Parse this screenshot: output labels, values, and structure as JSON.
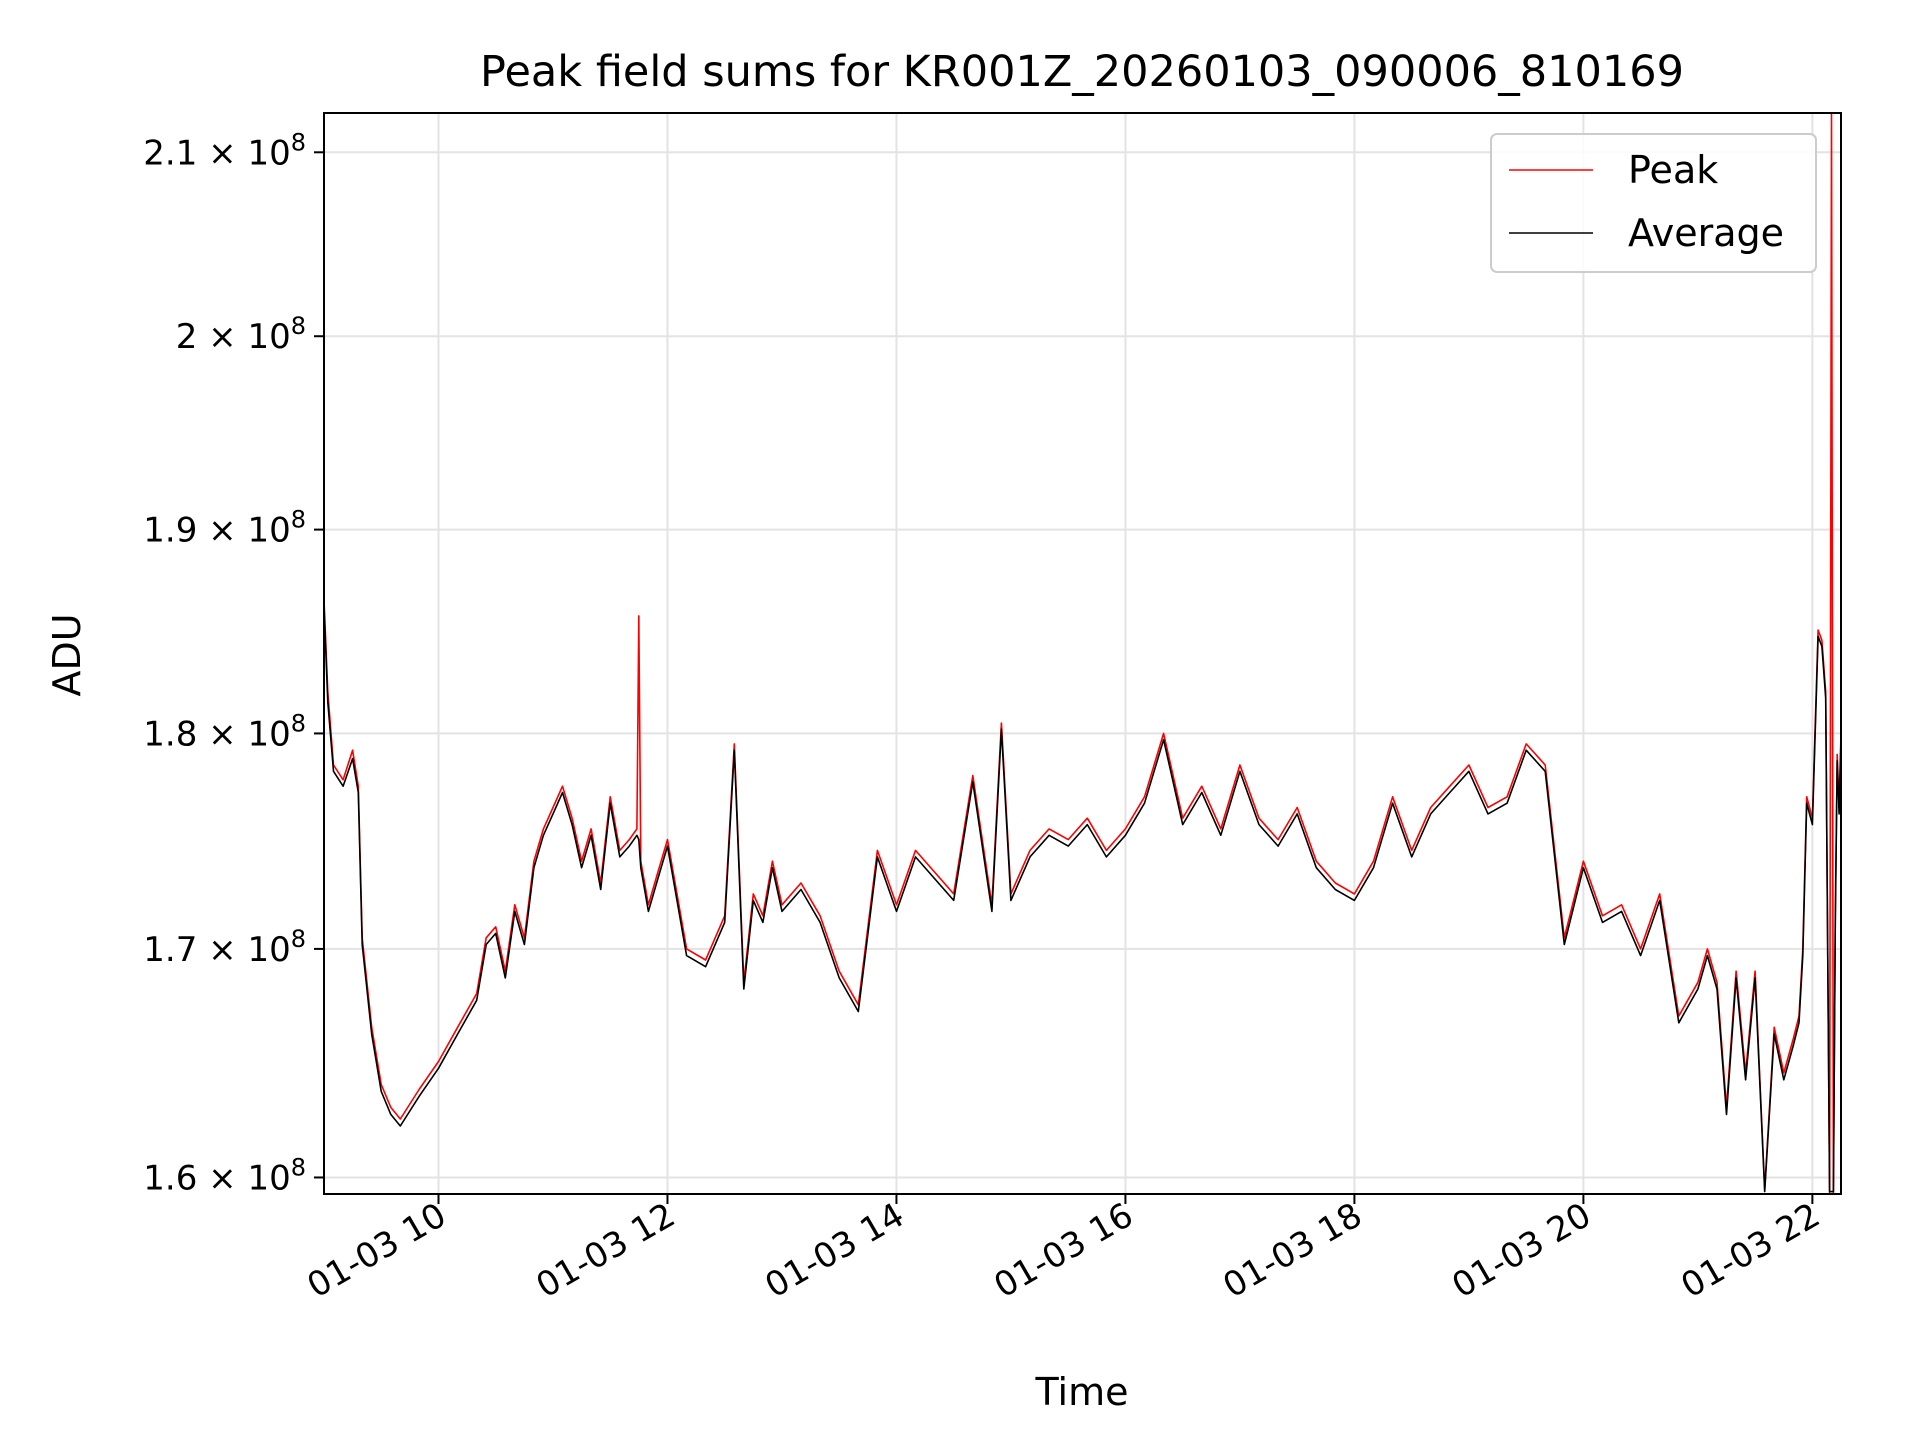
{
  "chart_data": {
    "type": "line",
    "title": "Peak field sums for KR001Z_20260103_090006_810169",
    "xlabel": "Time",
    "ylabel": "ADU",
    "y_scale": "log",
    "grid": true,
    "legend_position": "top-right",
    "xlim": [
      "2026-01-03 09:00",
      "2026-01-03 22:15"
    ],
    "ylim": [
      159300000,
      212200000
    ],
    "x_ticks": [
      {
        "value": "2026-01-03 10:00",
        "label": "01-03 10"
      },
      {
        "value": "2026-01-03 12:00",
        "label": "01-03 12"
      },
      {
        "value": "2026-01-03 14:00",
        "label": "01-03 14"
      },
      {
        "value": "2026-01-03 16:00",
        "label": "01-03 16"
      },
      {
        "value": "2026-01-03 18:00",
        "label": "01-03 18"
      },
      {
        "value": "2026-01-03 20:00",
        "label": "01-03 20"
      },
      {
        "value": "2026-01-03 22:00",
        "label": "01-03 22"
      }
    ],
    "y_ticks": [
      {
        "value": 160000000,
        "mantissa": "1.6"
      },
      {
        "value": 170000000,
        "mantissa": "1.7"
      },
      {
        "value": 180000000,
        "mantissa": "1.8"
      },
      {
        "value": 190000000,
        "mantissa": "1.9"
      },
      {
        "value": 200000000,
        "mantissa": "2"
      },
      {
        "value": 210000000,
        "mantissa": "2.1"
      }
    ],
    "y_tick_base": "× 10",
    "y_tick_exponent": "8",
    "series": [
      {
        "name": "Peak",
        "color": "#ff0000",
        "x": [
          "2026-01-03 09:00",
          "2026-01-03 09:02",
          "2026-01-03 09:05",
          "2026-01-03 09:10",
          "2026-01-03 09:15",
          "2026-01-03 09:18",
          "2026-01-03 09:20",
          "2026-01-03 09:25",
          "2026-01-03 09:30",
          "2026-01-03 09:35",
          "2026-01-03 09:40",
          "2026-01-03 09:50",
          "2026-01-03 10:00",
          "2026-01-03 10:10",
          "2026-01-03 10:20",
          "2026-01-03 10:25",
          "2026-01-03 10:30",
          "2026-01-03 10:35",
          "2026-01-03 10:40",
          "2026-01-03 10:45",
          "2026-01-03 10:50",
          "2026-01-03 10:55",
          "2026-01-03 11:00",
          "2026-01-03 11:05",
          "2026-01-03 11:10",
          "2026-01-03 11:15",
          "2026-01-03 11:20",
          "2026-01-03 11:25",
          "2026-01-03 11:30",
          "2026-01-03 11:35",
          "2026-01-03 11:40",
          "2026-01-03 11:44",
          "2026-01-03 11:45",
          "2026-01-03 11:46",
          "2026-01-03 11:50",
          "2026-01-03 11:55",
          "2026-01-03 12:00",
          "2026-01-03 12:10",
          "2026-01-03 12:20",
          "2026-01-03 12:30",
          "2026-01-03 12:35",
          "2026-01-03 12:40",
          "2026-01-03 12:45",
          "2026-01-03 12:50",
          "2026-01-03 12:55",
          "2026-01-03 13:00",
          "2026-01-03 13:10",
          "2026-01-03 13:20",
          "2026-01-03 13:30",
          "2026-01-03 13:40",
          "2026-01-03 13:50",
          "2026-01-03 14:00",
          "2026-01-03 14:10",
          "2026-01-03 14:20",
          "2026-01-03 14:30",
          "2026-01-03 14:40",
          "2026-01-03 14:50",
          "2026-01-03 14:55",
          "2026-01-03 15:00",
          "2026-01-03 15:10",
          "2026-01-03 15:20",
          "2026-01-03 15:30",
          "2026-01-03 15:40",
          "2026-01-03 15:50",
          "2026-01-03 16:00",
          "2026-01-03 16:10",
          "2026-01-03 16:20",
          "2026-01-03 16:30",
          "2026-01-03 16:40",
          "2026-01-03 16:50",
          "2026-01-03 17:00",
          "2026-01-03 17:10",
          "2026-01-03 17:20",
          "2026-01-03 17:30",
          "2026-01-03 17:40",
          "2026-01-03 17:50",
          "2026-01-03 18:00",
          "2026-01-03 18:10",
          "2026-01-03 18:20",
          "2026-01-03 18:30",
          "2026-01-03 18:40",
          "2026-01-03 18:50",
          "2026-01-03 19:00",
          "2026-01-03 19:10",
          "2026-01-03 19:20",
          "2026-01-03 19:30",
          "2026-01-03 19:40",
          "2026-01-03 19:50",
          "2026-01-03 20:00",
          "2026-01-03 20:10",
          "2026-01-03 20:20",
          "2026-01-03 20:30",
          "2026-01-03 20:40",
          "2026-01-03 20:50",
          "2026-01-03 21:00",
          "2026-01-03 21:05",
          "2026-01-03 21:10",
          "2026-01-03 21:15",
          "2026-01-03 21:20",
          "2026-01-03 21:25",
          "2026-01-03 21:30",
          "2026-01-03 21:35",
          "2026-01-03 21:40",
          "2026-01-03 21:45",
          "2026-01-03 21:50",
          "2026-01-03 21:53",
          "2026-01-03 21:55",
          "2026-01-03 21:57",
          "2026-01-03 22:00",
          "2026-01-03 22:03",
          "2026-01-03 22:05",
          "2026-01-03 22:07",
          "2026-01-03 22:09",
          "2026-01-03 22:10",
          "2026-01-03 22:11",
          "2026-01-03 22:12",
          "2026-01-03 22:13",
          "2026-01-03 22:14",
          "2026-01-03 22:15"
        ],
        "y": [
          186500000,
          182000000,
          178500000,
          177800000,
          179200000,
          177500000,
          170500000,
          166500000,
          164000000,
          163000000,
          162500000,
          163800000,
          165000000,
          166500000,
          168000000,
          170500000,
          171000000,
          169000000,
          172000000,
          170500000,
          174000000,
          175500000,
          176500000,
          177500000,
          176000000,
          174000000,
          175500000,
          173000000,
          177000000,
          174500000,
          175000000,
          175500000,
          185700000,
          174000000,
          172000000,
          173500000,
          175000000,
          170000000,
          169500000,
          171500000,
          179500000,
          168500000,
          172500000,
          171500000,
          174000000,
          172000000,
          173000000,
          171500000,
          169000000,
          167500000,
          174500000,
          172000000,
          174500000,
          173500000,
          172500000,
          178000000,
          172000000,
          180500000,
          172500000,
          174500000,
          175500000,
          175000000,
          176000000,
          174500000,
          175500000,
          177000000,
          180000000,
          176000000,
          177500000,
          175500000,
          178500000,
          176000000,
          175000000,
          176500000,
          174000000,
          173000000,
          172500000,
          174000000,
          177000000,
          174500000,
          176500000,
          177500000,
          178500000,
          176500000,
          177000000,
          179500000,
          178500000,
          170500000,
          174000000,
          171500000,
          172000000,
          170000000,
          172500000,
          167000000,
          168500000,
          170000000,
          168500000,
          163000000,
          169000000,
          164500000,
          169000000,
          159500000,
          166500000,
          164500000,
          166000000,
          167000000,
          170000000,
          177000000,
          176000000,
          185000000,
          184500000,
          182000000,
          159300000,
          212200000,
          159300000,
          171500000,
          179000000,
          176500000,
          180000000
        ]
      },
      {
        "name": "Average",
        "color": "#000000",
        "x": [
          "2026-01-03 09:00",
          "2026-01-03 09:02",
          "2026-01-03 09:05",
          "2026-01-03 09:10",
          "2026-01-03 09:15",
          "2026-01-03 09:18",
          "2026-01-03 09:20",
          "2026-01-03 09:25",
          "2026-01-03 09:30",
          "2026-01-03 09:35",
          "2026-01-03 09:40",
          "2026-01-03 09:50",
          "2026-01-03 10:00",
          "2026-01-03 10:10",
          "2026-01-03 10:20",
          "2026-01-03 10:25",
          "2026-01-03 10:30",
          "2026-01-03 10:35",
          "2026-01-03 10:40",
          "2026-01-03 10:45",
          "2026-01-03 10:50",
          "2026-01-03 10:55",
          "2026-01-03 11:00",
          "2026-01-03 11:05",
          "2026-01-03 11:10",
          "2026-01-03 11:15",
          "2026-01-03 11:20",
          "2026-01-03 11:25",
          "2026-01-03 11:30",
          "2026-01-03 11:35",
          "2026-01-03 11:40",
          "2026-01-03 11:44",
          "2026-01-03 11:45",
          "2026-01-03 11:46",
          "2026-01-03 11:50",
          "2026-01-03 11:55",
          "2026-01-03 12:00",
          "2026-01-03 12:10",
          "2026-01-03 12:20",
          "2026-01-03 12:30",
          "2026-01-03 12:35",
          "2026-01-03 12:40",
          "2026-01-03 12:45",
          "2026-01-03 12:50",
          "2026-01-03 12:55",
          "2026-01-03 13:00",
          "2026-01-03 13:10",
          "2026-01-03 13:20",
          "2026-01-03 13:30",
          "2026-01-03 13:40",
          "2026-01-03 13:50",
          "2026-01-03 14:00",
          "2026-01-03 14:10",
          "2026-01-03 14:20",
          "2026-01-03 14:30",
          "2026-01-03 14:40",
          "2026-01-03 14:50",
          "2026-01-03 14:55",
          "2026-01-03 15:00",
          "2026-01-03 15:10",
          "2026-01-03 15:20",
          "2026-01-03 15:30",
          "2026-01-03 15:40",
          "2026-01-03 15:50",
          "2026-01-03 16:00",
          "2026-01-03 16:10",
          "2026-01-03 16:20",
          "2026-01-03 16:30",
          "2026-01-03 16:40",
          "2026-01-03 16:50",
          "2026-01-03 17:00",
          "2026-01-03 17:10",
          "2026-01-03 17:20",
          "2026-01-03 17:30",
          "2026-01-03 17:40",
          "2026-01-03 17:50",
          "2026-01-03 18:00",
          "2026-01-03 18:10",
          "2026-01-03 18:20",
          "2026-01-03 18:30",
          "2026-01-03 18:40",
          "2026-01-03 18:50",
          "2026-01-03 19:00",
          "2026-01-03 19:10",
          "2026-01-03 19:20",
          "2026-01-03 19:30",
          "2026-01-03 19:40",
          "2026-01-03 19:50",
          "2026-01-03 20:00",
          "2026-01-03 20:10",
          "2026-01-03 20:20",
          "2026-01-03 20:30",
          "2026-01-03 20:40",
          "2026-01-03 20:50",
          "2026-01-03 21:00",
          "2026-01-03 21:05",
          "2026-01-03 21:10",
          "2026-01-03 21:15",
          "2026-01-03 21:20",
          "2026-01-03 21:25",
          "2026-01-03 21:30",
          "2026-01-03 21:35",
          "2026-01-03 21:40",
          "2026-01-03 21:45",
          "2026-01-03 21:50",
          "2026-01-03 21:53",
          "2026-01-03 21:55",
          "2026-01-03 21:57",
          "2026-01-03 22:00",
          "2026-01-03 22:03",
          "2026-01-03 22:05",
          "2026-01-03 22:07",
          "2026-01-03 22:09",
          "2026-01-03 22:10",
          "2026-01-03 22:11",
          "2026-01-03 22:12",
          "2026-01-03 22:13",
          "2026-01-03 22:14",
          "2026-01-03 22:15"
        ],
        "y": [
          186200000,
          181500000,
          178200000,
          177500000,
          178800000,
          177200000,
          170200000,
          166200000,
          163700000,
          162700000,
          162200000,
          163500000,
          164700000,
          166200000,
          167700000,
          170200000,
          170700000,
          168700000,
          171700000,
          170200000,
          173700000,
          175200000,
          176200000,
          177200000,
          175700000,
          173700000,
          175200000,
          172700000,
          176700000,
          174200000,
          174700000,
          175200000,
          175000000,
          173700000,
          171700000,
          173200000,
          174700000,
          169700000,
          169200000,
          171200000,
          179200000,
          168200000,
          172200000,
          171200000,
          173700000,
          171700000,
          172700000,
          171200000,
          168700000,
          167200000,
          174200000,
          171700000,
          174200000,
          173200000,
          172200000,
          177700000,
          171700000,
          180200000,
          172200000,
          174200000,
          175200000,
          174700000,
          175700000,
          174200000,
          175200000,
          176700000,
          179700000,
          175700000,
          177200000,
          175200000,
          178200000,
          175700000,
          174700000,
          176200000,
          173700000,
          172700000,
          172200000,
          173700000,
          176700000,
          174200000,
          176200000,
          177200000,
          178200000,
          176200000,
          176700000,
          179200000,
          178200000,
          170200000,
          173700000,
          171200000,
          171700000,
          169700000,
          172200000,
          166700000,
          168200000,
          169700000,
          168200000,
          162700000,
          168700000,
          164200000,
          168700000,
          159400000,
          166200000,
          164200000,
          165700000,
          166700000,
          169700000,
          176700000,
          175700000,
          184700000,
          184200000,
          181700000,
          159400000,
          159400000,
          159400000,
          171200000,
          178700000,
          176200000,
          179700000
        ]
      }
    ]
  }
}
